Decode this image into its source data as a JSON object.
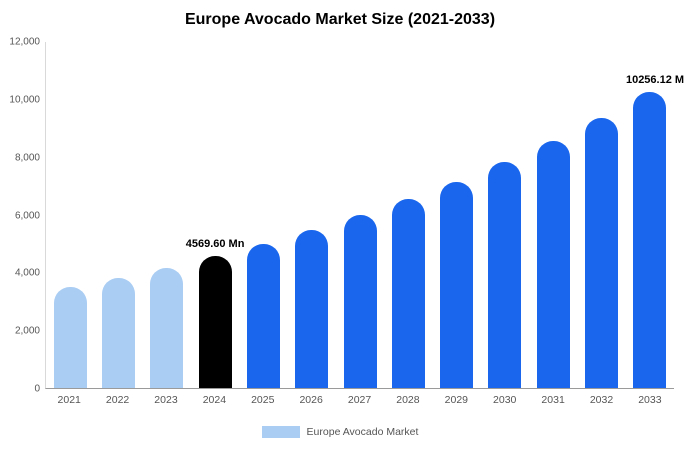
{
  "chart_data": {
    "type": "bar",
    "title": "Europe Avocado Market Size (2021-2033)",
    "categories": [
      "2021",
      "2022",
      "2023",
      "2024",
      "2025",
      "2026",
      "2027",
      "2028",
      "2029",
      "2030",
      "2031",
      "2032",
      "2033"
    ],
    "values": [
      3490,
      3818,
      4177,
      4569.6,
      4999,
      5469,
      5984,
      6546,
      7162,
      7834,
      8570,
      9375,
      10256.12
    ],
    "series_name": "Europe Avocado Market",
    "xlabel": "",
    "ylabel": "",
    "ylim": [
      0,
      12000
    ],
    "yticks": [
      0,
      2000,
      4000,
      6000,
      8000,
      10000,
      12000
    ],
    "ytick_labels": [
      "0",
      "2,000",
      "4,000",
      "6,000",
      "8,000",
      "10,000",
      "12,000"
    ],
    "grid": false,
    "legend_position": "bottom",
    "legend_label": "Europe Avocado Market",
    "bar_colors": [
      "#a9cdf3",
      "#a9cdf3",
      "#a9cdf3",
      "#000000",
      "#1a67ee",
      "#1a67ee",
      "#1a67ee",
      "#1a67ee",
      "#1a67ee",
      "#1a67ee",
      "#1a67ee",
      "#1a67ee",
      "#1a67ee"
    ],
    "annotations": [
      {
        "index": 3,
        "text": "4569.60 Mn",
        "align": "center"
      },
      {
        "index": 12,
        "text": "10256.12 M",
        "align": "right"
      }
    ],
    "colors": {
      "historical_bar": "#a9cdf3",
      "highlight_bar": "#000000",
      "forecast_bar": "#1a67ee",
      "axis_line": "#9a9a9a",
      "tick_text": "#555555",
      "title_text": "#000000"
    }
  }
}
